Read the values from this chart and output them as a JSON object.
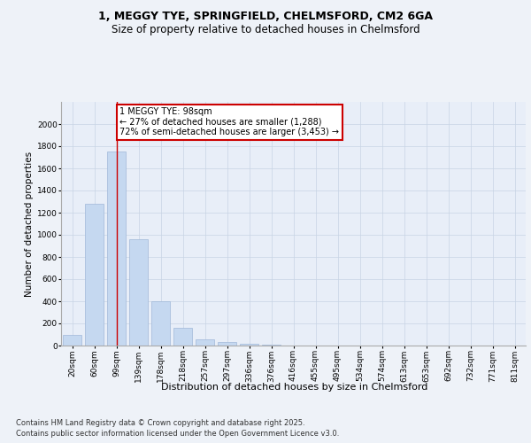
{
  "title_line1": "1, MEGGY TYE, SPRINGFIELD, CHELMSFORD, CM2 6GA",
  "title_line2": "Size of property relative to detached houses in Chelmsford",
  "xlabel": "Distribution of detached houses by size in Chelmsford",
  "ylabel": "Number of detached properties",
  "categories": [
    "20sqm",
    "60sqm",
    "99sqm",
    "139sqm",
    "178sqm",
    "218sqm",
    "257sqm",
    "297sqm",
    "336sqm",
    "376sqm",
    "416sqm",
    "455sqm",
    "495sqm",
    "534sqm",
    "574sqm",
    "613sqm",
    "653sqm",
    "692sqm",
    "732sqm",
    "771sqm",
    "811sqm"
  ],
  "values": [
    100,
    1280,
    1750,
    960,
    400,
    160,
    60,
    30,
    20,
    5,
    2,
    0,
    0,
    0,
    0,
    0,
    0,
    0,
    0,
    0,
    0
  ],
  "bar_color": "#c5d8f0",
  "bar_edge_color": "#a0b8d8",
  "vline_x_index": 2,
  "vline_color": "#cc0000",
  "annotation_text": "1 MEGGY TYE: 98sqm\n← 27% of detached houses are smaller (1,288)\n72% of semi-detached houses are larger (3,453) →",
  "annotation_box_color": "#cc0000",
  "ylim": [
    0,
    2200
  ],
  "yticks": [
    0,
    200,
    400,
    600,
    800,
    1000,
    1200,
    1400,
    1600,
    1800,
    2000
  ],
  "grid_color": "#c8d4e4",
  "bg_color": "#e8eef8",
  "fig_bg_color": "#eef2f8",
  "footer_line1": "Contains HM Land Registry data © Crown copyright and database right 2025.",
  "footer_line2": "Contains public sector information licensed under the Open Government Licence v3.0.",
  "title_fontsize": 9,
  "subtitle_fontsize": 8.5,
  "ylabel_fontsize": 7.5,
  "xlabel_fontsize": 8,
  "tick_fontsize": 6.5,
  "annotation_fontsize": 7,
  "footer_fontsize": 6
}
